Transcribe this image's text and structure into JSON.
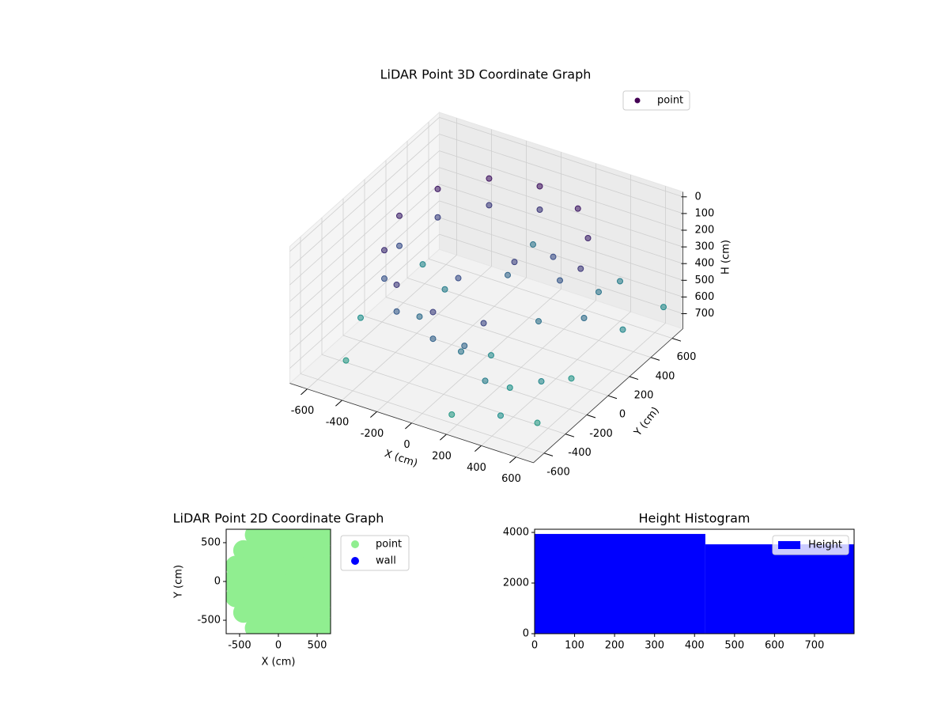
{
  "chart_data": [
    {
      "type": "scatter3d",
      "title": "LiDAR Point 3D Coordinate Graph",
      "xlabel": "X (cm)",
      "ylabel": "Y (cm)",
      "zlabel": "H (cm)",
      "xlim": [
        -700,
        700
      ],
      "ylim": [
        -700,
        700
      ],
      "zlim": [
        -30,
        790
      ],
      "zinverted": true,
      "xticks": [
        -600,
        -400,
        -200,
        0,
        200,
        400,
        600
      ],
      "yticks": [
        -600,
        -400,
        -200,
        0,
        200,
        400,
        600
      ],
      "zticks": [
        0,
        100,
        200,
        300,
        400,
        500,
        600,
        700
      ],
      "colormap": "viridis",
      "grid": true,
      "legend": "upper right",
      "series": [
        {
          "name": "point",
          "color": "#440154",
          "x": [
            0,
            -250,
            -433,
            -500,
            -433,
            -250,
            0,
            250,
            0,
            -250,
            -433,
            -500,
            -433,
            -250,
            0,
            150,
            250,
            400,
            450,
            100,
            -100,
            200,
            300,
            400,
            500,
            600,
            -200,
            100,
            300,
            450,
            500,
            -600,
            -500,
            200,
            600,
            650,
            -100,
            400,
            300,
            0,
            -300,
            550,
            150,
            -550,
            350
          ],
          "y": [
            500,
            433,
            250,
            0,
            -250,
            -433,
            -500,
            -433,
            500,
            433,
            250,
            0,
            -250,
            -433,
            -500,
            -450,
            450,
            300,
            150,
            100,
            -100,
            300,
            200,
            400,
            100,
            300,
            -300,
            -400,
            -500,
            -600,
            -300,
            -200,
            -500,
            -650,
            -500,
            600,
            600,
            600,
            0,
            200,
            100,
            -100,
            -200,
            300,
            -350
          ],
          "z": [
            60,
            60,
            80,
            120,
            160,
            200,
            240,
            260,
            200,
            220,
            250,
            300,
            330,
            360,
            400,
            420,
            80,
            120,
            200,
            250,
            300,
            300,
            350,
            500,
            450,
            600,
            450,
            500,
            550,
            650,
            600,
            650,
            700,
            700,
            700,
            620,
            500,
            550,
            480,
            420,
            550,
            680,
            620,
            600,
            660
          ]
        }
      ]
    },
    {
      "type": "scatter",
      "title": "LiDAR Point 2D Coordinate Graph",
      "xlabel": "X (cm)",
      "ylabel": "Y (cm)",
      "xlim": [
        -673,
        673
      ],
      "ylim": [
        -673,
        673
      ],
      "xticks": [
        -500,
        0,
        500
      ],
      "yticks": [
        -500,
        0,
        500
      ],
      "legend": "outside right",
      "series": [
        {
          "name": "point",
          "color": "#90ee90",
          "x": [
            -300,
            -100,
            100,
            300,
            500,
            650,
            -450,
            -250,
            -50,
            150,
            350,
            550,
            -550,
            -350,
            -150,
            50,
            250,
            450,
            650,
            -600,
            -400,
            -200,
            0,
            200,
            400,
            600,
            -550,
            -350,
            -150,
            50,
            250,
            450,
            650,
            -450,
            -250,
            -50,
            150,
            350,
            550,
            -300,
            -100,
            100,
            300,
            500,
            650
          ],
          "y": [
            600,
            600,
            600,
            600,
            600,
            600,
            400,
            400,
            400,
            400,
            400,
            400,
            200,
            200,
            200,
            200,
            200,
            200,
            200,
            0,
            0,
            0,
            0,
            0,
            0,
            0,
            -200,
            -200,
            -200,
            -200,
            -200,
            -200,
            -200,
            -400,
            -400,
            -400,
            -400,
            -400,
            -400,
            -600,
            -600,
            -600,
            -600,
            -600,
            -600
          ]
        },
        {
          "name": "wall",
          "color": "#0000ff",
          "x": [],
          "y": []
        }
      ]
    },
    {
      "type": "histogram",
      "title": "Height Histogram",
      "bins": [
        0,
        427,
        799
      ],
      "xlim": [
        0,
        799
      ],
      "ylim": [
        0,
        4125
      ],
      "xticks": [
        0,
        100,
        200,
        300,
        400,
        500,
        600,
        700
      ],
      "yticks": [
        0,
        2000,
        4000
      ],
      "legend": "upper right",
      "series": [
        {
          "name": "Height",
          "color": "#0000ff",
          "values": [
            3940,
            3530
          ]
        }
      ]
    }
  ]
}
